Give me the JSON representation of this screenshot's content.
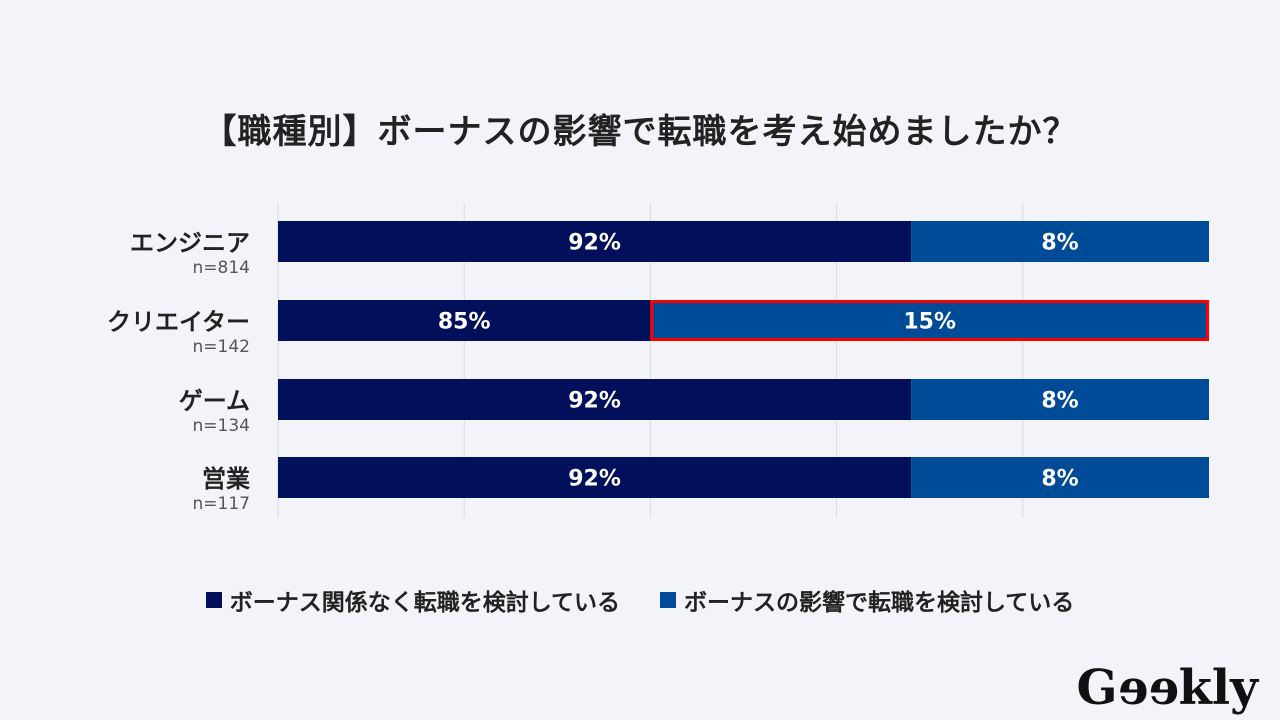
{
  "title": "【職種別】ボーナスの影響で転職を考え始めましたか？",
  "logo": "Geekly",
  "chart_data": {
    "type": "bar",
    "orientation": "horizontal",
    "stacked": true,
    "title": "【職種別】ボーナスの影響で転職を考え始めましたか？",
    "categories": [
      "エンジニア",
      "クリエイター",
      "ゲーム",
      "営業"
    ],
    "sample_sizes": [
      "n=814",
      "n=142",
      "n=134",
      "n=117"
    ],
    "series": [
      {
        "name": "ボーナス関係なく転職を検討している",
        "color": "#020f5a",
        "values": [
          92,
          85,
          92,
          92
        ],
        "labels": [
          "92%",
          "85%",
          "92%",
          "92%"
        ]
      },
      {
        "name": "ボーナスの影響で転職を検討している",
        "color": "#004b97",
        "values": [
          8,
          15,
          8,
          8
        ],
        "labels": [
          "8%",
          "15%",
          "8%",
          "8%"
        ]
      }
    ],
    "highlight": {
      "category": "クリエイター",
      "series": 1,
      "color": "#ff0000"
    },
    "grid": true,
    "legend": "bottom"
  }
}
